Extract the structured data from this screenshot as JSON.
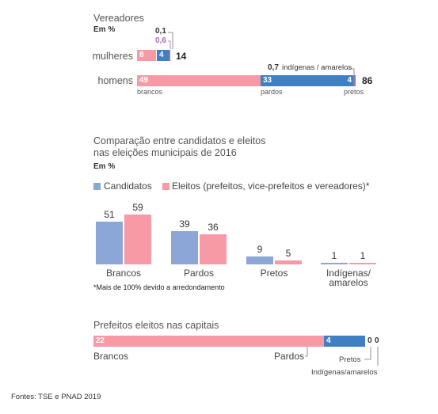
{
  "colors": {
    "brancos": "#f79aa5",
    "pardos": "#3f7fc3",
    "pretos": "#a56cae",
    "candidatos": "#8ca6d8",
    "eleitos": "#f79aa5"
  },
  "vereadores": {
    "title": "Vereadores",
    "unit": "Em %",
    "mulheres": {
      "label": "mulheres",
      "brancos": 8,
      "pardos": 4,
      "indigenas": "0,1",
      "pretos": "0,6",
      "total": "14"
    },
    "homens": {
      "label": "homens",
      "brancos": 49,
      "pardos": 33,
      "pretos": 4,
      "indigenas": "0,7",
      "total": "86"
    },
    "cap_brancos": "brancos",
    "cap_pardos": "pardos",
    "cap_pretos": "pretos",
    "indigenas_label": "indígenas / amarelos"
  },
  "comparacao": {
    "title_line1": "Comparação entre candidatos e eleitos",
    "title_line2": "nas eleições municipais de 2016",
    "unit": "Em %",
    "legend_candidatos": "Candidatos",
    "legend_eleitos": "Eleitos (prefeitos, vice-prefeitos e vereadores)*",
    "note": "*Mais de 100% devido a arredondamento",
    "cat_label_line2": "amarelos"
  },
  "chart_data": {
    "type": "bar",
    "categories": [
      "Brancos",
      "Pardos",
      "Pretos",
      "Indígenas/"
    ],
    "series": [
      {
        "name": "Candidatos",
        "values": [
          51,
          39,
          9,
          1
        ]
      },
      {
        "name": "Eleitos (prefeitos, vice-prefeitos e vereadores)*",
        "values": [
          59,
          36,
          5,
          1
        ]
      }
    ],
    "ylim": [
      0,
      59
    ],
    "grid": false,
    "legend": "top-left"
  },
  "prefeitos": {
    "title": "Prefeitos eleitos nas capitais",
    "brancos": 22,
    "pardos": 4,
    "pretos": "0",
    "indigenas": "0",
    "cap_brancos": "Brancos",
    "cap_pardos": "Pardos",
    "cap_pretos": "Pretos",
    "cap_indigenas": "Indígenas/amarelos"
  },
  "source": "Fontes: TSE e PNAD 2019"
}
